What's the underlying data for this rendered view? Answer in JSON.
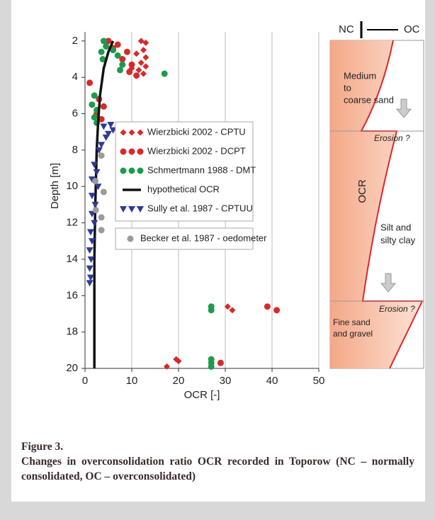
{
  "chart_data": {
    "type": "scatter",
    "xlabel": "OCR [-]",
    "ylabel": "Depth [m]",
    "xlim": [
      0,
      50
    ],
    "ylim": [
      1.5,
      20
    ],
    "y_inverted": true,
    "xticks": [
      0,
      10,
      20,
      30,
      40,
      50
    ],
    "yticks": [
      2,
      4,
      6,
      8,
      10,
      12,
      14,
      16,
      18,
      20
    ],
    "grid": "x",
    "series": [
      {
        "name": "Wierzbicki 2002 - CPTU",
        "color": "#d62a2a",
        "marker": "diamond",
        "x": [
          12,
          13,
          12.5,
          11,
          13,
          12,
          13,
          11.5,
          12.5,
          10,
          30.5,
          31.5,
          19.5,
          20,
          17.5
        ],
        "values": [
          2,
          2.1,
          2.5,
          2.7,
          2.9,
          3.2,
          3.4,
          3.6,
          3.8,
          3.5,
          16.6,
          16.8,
          19.5,
          19.6,
          19.9
        ]
      },
      {
        "name": "Wierzbicki 2002 - DCPT",
        "color": "#d62a2a",
        "marker": "circle",
        "x": [
          5,
          7,
          9,
          8,
          10,
          6,
          11,
          9.5,
          1,
          3,
          4,
          2.5,
          3.5,
          39,
          41,
          29
        ],
        "values": [
          2,
          2.2,
          2.6,
          3,
          3.3,
          2.4,
          3.9,
          3.7,
          4.3,
          5.2,
          5.6,
          6,
          6.3,
          16.6,
          16.8,
          19.7
        ]
      },
      {
        "name": "Schmertmann 1988 - DMT",
        "color": "#1f9a4c",
        "marker": "circle",
        "x": [
          4,
          4.5,
          3.5,
          3.8,
          6,
          7,
          8,
          7.5,
          17,
          2,
          1.5,
          2.5,
          2,
          2.5,
          27,
          27,
          27,
          27,
          27
        ],
        "values": [
          2,
          2.3,
          2.6,
          3,
          2.5,
          2.8,
          3.3,
          3.6,
          3.8,
          5,
          5.5,
          5.8,
          6.2,
          6.5,
          16.6,
          16.8,
          19.5,
          19.7,
          19.9
        ]
      },
      {
        "name": "hypothetical OCR",
        "color": "#111111",
        "marker": "line",
        "x": [
          6,
          5,
          4,
          3.2,
          2.8,
          2.5,
          2.2,
          2,
          2
        ],
        "values": [
          2,
          2.6,
          3.5,
          5,
          6.5,
          8,
          11,
          14,
          20
        ]
      },
      {
        "name": "Sully et al. 1987 - CPTUU",
        "color": "#2d3a96",
        "marker": "triangle",
        "x": [
          6,
          5,
          4.5,
          3.5,
          3,
          2,
          2.5,
          1.5,
          2.8,
          1.5,
          2.2,
          1.5,
          2,
          1.2,
          1.5,
          1,
          1.3,
          1,
          1.2,
          1,
          4,
          5.5
        ],
        "values": [
          6.9,
          7.1,
          7.3,
          7.7,
          8,
          8.8,
          9.2,
          9.6,
          10,
          10.5,
          11,
          11.5,
          12,
          12.5,
          13,
          13.5,
          14,
          14.5,
          15,
          15.3,
          6.7,
          6.6
        ]
      },
      {
        "name": "Becker et al. 1987 - oedometer",
        "color": "#9a9a9a",
        "marker": "circle",
        "x": [
          3.5,
          2.2,
          4,
          2.3,
          3.5,
          3.5
        ],
        "values": [
          8.3,
          9.7,
          10.3,
          11.3,
          11.7,
          12.4
        ]
      }
    ]
  },
  "profile": {
    "nc": "NC",
    "oc": "OC",
    "layer1": [
      "Medium",
      "to",
      "coarse sand"
    ],
    "erosion1": "Erosion ?",
    "ocr": "OCR",
    "layer2": [
      "Silt and",
      "silty clay"
    ],
    "erosion2": "Erosion ?",
    "layer3": [
      "Fine sand",
      "and gravel"
    ]
  },
  "caption": {
    "label": "Figure 3.",
    "text": "Changes in overconsolidation ratio OCR recorded in Toporow (NC – normally consolidated, OC – overconsolidated)"
  }
}
